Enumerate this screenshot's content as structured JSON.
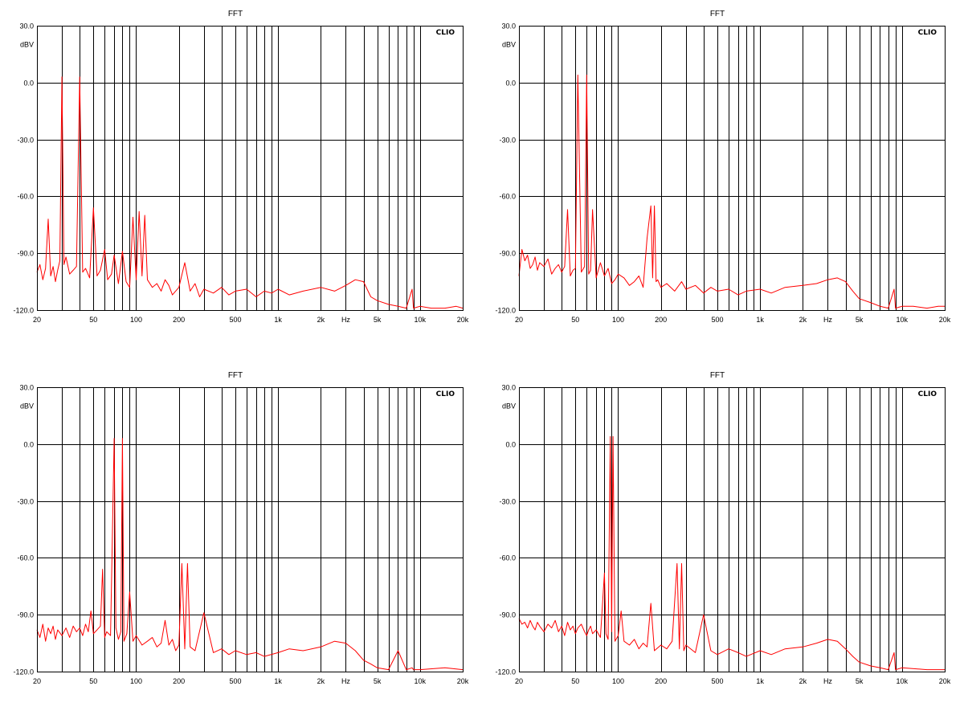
{
  "chart_data": [
    {
      "type": "line",
      "title": "FFT",
      "brand": "CLIO",
      "ylabel": "dBV",
      "xlabel_unit": "Hz",
      "x_scale": "log",
      "xlim": [
        20,
        20000
      ],
      "ylim": [
        -120,
        30
      ],
      "yticks": [
        "30.0",
        "0.0",
        "-30.0",
        "-60.0",
        "-90.0",
        "-120.0"
      ],
      "xticks": [
        "20",
        "50",
        "100",
        "200",
        "500",
        "1k",
        "2k",
        "Hz",
        "5k",
        "10k",
        "20k"
      ],
      "grid": true,
      "color": "#ff0000",
      "series": [
        {
          "x": [
            20,
            21,
            22,
            23,
            24,
            25,
            26,
            27,
            28,
            29,
            30,
            31,
            32,
            34,
            36,
            38,
            40,
            42,
            44,
            47,
            50,
            53,
            56,
            60,
            63,
            67,
            70,
            75,
            80,
            85,
            90,
            95,
            100,
            105,
            110,
            115,
            120,
            130,
            140,
            150,
            160,
            170,
            180,
            200,
            220,
            240,
            260,
            280,
            300,
            350,
            400,
            450,
            500,
            600,
            700,
            800,
            900,
            1000,
            1200,
            1500,
            2000,
            2500,
            3000,
            3500,
            4000,
            4500,
            5000,
            6000,
            7000,
            8000,
            8800,
            9000,
            10000,
            12000,
            15000,
            18000,
            20000
          ],
          "y": [
            -100,
            -96,
            -104,
            -98,
            -72,
            -102,
            -97,
            -105,
            -99,
            -94,
            3,
            -96,
            -92,
            -101,
            -99,
            -97,
            3,
            -100,
            -98,
            -103,
            -66,
            -102,
            -99,
            -88,
            -104,
            -101,
            -91,
            -106,
            -89,
            -105,
            -108,
            -71,
            -104,
            -68,
            -102,
            -70,
            -104,
            -108,
            -106,
            -110,
            -104,
            -107,
            -112,
            -108,
            -95,
            -110,
            -106,
            -113,
            -109,
            -111,
            -108,
            -112,
            -110,
            -109,
            -113,
            -110,
            -111,
            -109,
            -112,
            -110,
            -108,
            -110,
            -107,
            -104,
            -105,
            -113,
            -115,
            -117,
            -118,
            -119,
            -109,
            -119,
            -118,
            -119,
            -119,
            -118,
            -119
          ]
        }
      ]
    },
    {
      "type": "line",
      "title": "FFT",
      "brand": "CLIO",
      "ylabel": "dBV",
      "xlabel_unit": "Hz",
      "x_scale": "log",
      "xlim": [
        20,
        20000
      ],
      "ylim": [
        -120,
        30
      ],
      "yticks": [
        "30.0",
        "0.0",
        "-30.0",
        "-60.0",
        "-90.0",
        "-120.0"
      ],
      "xticks": [
        "20",
        "50",
        "100",
        "200",
        "500",
        "1k",
        "2k",
        "Hz",
        "5k",
        "10k",
        "20k"
      ],
      "grid": true,
      "color": "#ff0000",
      "series": [
        {
          "x": [
            20,
            21,
            22,
            23,
            24,
            25,
            26,
            27,
            28,
            30,
            32,
            34,
            36,
            38,
            40,
            42,
            44,
            46,
            48,
            50,
            52,
            55,
            58,
            60,
            62,
            64,
            66,
            70,
            75,
            80,
            85,
            90,
            95,
            100,
            110,
            120,
            130,
            140,
            150,
            160,
            170,
            175,
            180,
            185,
            190,
            200,
            220,
            250,
            280,
            300,
            350,
            400,
            450,
            500,
            600,
            700,
            800,
            1000,
            1200,
            1500,
            2000,
            2500,
            3000,
            3500,
            4000,
            4500,
            5000,
            6000,
            7000,
            8000,
            8800,
            9000,
            10000,
            12000,
            15000,
            18000,
            20000
          ],
          "y": [
            -102,
            -88,
            -94,
            -91,
            -98,
            -96,
            -92,
            -99,
            -95,
            -97,
            -93,
            -101,
            -98,
            -96,
            -100,
            -97,
            -67,
            -102,
            -99,
            -98,
            4,
            -100,
            -97,
            4,
            -101,
            -99,
            -67,
            -103,
            -95,
            -102,
            -98,
            -106,
            -104,
            -101,
            -103,
            -107,
            -105,
            -102,
            -108,
            -82,
            -65,
            -103,
            -65,
            -105,
            -104,
            -108,
            -106,
            -110,
            -105,
            -109,
            -107,
            -111,
            -108,
            -110,
            -109,
            -112,
            -110,
            -109,
            -111,
            -108,
            -107,
            -106,
            -104,
            -103,
            -105,
            -110,
            -114,
            -116,
            -118,
            -119,
            -109,
            -119,
            -118,
            -118,
            -119,
            -118,
            -118
          ]
        }
      ]
    },
    {
      "type": "line",
      "title": "FFT",
      "brand": "CLIO",
      "ylabel": "dBV",
      "xlabel_unit": "Hz",
      "x_scale": "log",
      "xlim": [
        20,
        20000
      ],
      "ylim": [
        -120,
        30
      ],
      "yticks": [
        "30.0",
        "0.0",
        "-30.0",
        "-60.0",
        "-90.0",
        "-120.0"
      ],
      "xticks": [
        "20",
        "50",
        "100",
        "200",
        "500",
        "1k",
        "2k",
        "Hz",
        "5k",
        "10k",
        "20k"
      ],
      "grid": true,
      "color": "#ff0000",
      "series": [
        {
          "x": [
            20,
            21,
            22,
            23,
            24,
            25,
            26,
            27,
            28,
            30,
            32,
            34,
            36,
            38,
            40,
            42,
            44,
            46,
            48,
            50,
            53,
            56,
            58,
            60,
            62,
            66,
            70,
            72,
            75,
            78,
            80,
            82,
            86,
            90,
            95,
            100,
            110,
            120,
            130,
            140,
            150,
            160,
            170,
            180,
            190,
            200,
            210,
            220,
            230,
            240,
            260,
            300,
            350,
            400,
            450,
            500,
            600,
            700,
            800,
            1000,
            1200,
            1500,
            2000,
            2500,
            3000,
            3500,
            4000,
            4500,
            5000,
            6000,
            7000,
            8000,
            8800,
            9000,
            10000,
            15000,
            20000
          ],
          "y": [
            -98,
            -102,
            -95,
            -104,
            -97,
            -100,
            -96,
            -103,
            -98,
            -101,
            -97,
            -102,
            -96,
            -99,
            -97,
            -101,
            -95,
            -99,
            -88,
            -100,
            -98,
            -96,
            -66,
            -102,
            -99,
            -101,
            3,
            -97,
            -103,
            -99,
            3,
            -104,
            -100,
            -78,
            -104,
            -101,
            -106,
            -104,
            -102,
            -107,
            -105,
            -93,
            -106,
            -103,
            -109,
            -106,
            -63,
            -108,
            -63,
            -107,
            -109,
            -89,
            -110,
            -108,
            -111,
            -109,
            -111,
            -110,
            -112,
            -110,
            -108,
            -109,
            -107,
            -104,
            -105,
            -109,
            -114,
            -116,
            -118,
            -119,
            -109,
            -119,
            -118,
            -119,
            -119,
            -118,
            -119
          ]
        }
      ]
    },
    {
      "type": "line",
      "title": "FFT",
      "brand": "CLIO",
      "ylabel": "dBV",
      "xlabel_unit": "Hz",
      "x_scale": "log",
      "xlim": [
        20,
        20000
      ],
      "ylim": [
        -120,
        30
      ],
      "yticks": [
        "30.0",
        "0.0",
        "-30.0",
        "-60.0",
        "-90.0",
        "-120.0"
      ],
      "xticks": [
        "20",
        "50",
        "100",
        "200",
        "500",
        "1k",
        "2k",
        "Hz",
        "5k",
        "10k",
        "20k"
      ],
      "grid": true,
      "color": "#ff0000",
      "series": [
        {
          "x": [
            20,
            21,
            22,
            23,
            24,
            25,
            26,
            27,
            28,
            30,
            32,
            34,
            36,
            38,
            40,
            42,
            44,
            46,
            48,
            50,
            52,
            55,
            58,
            60,
            62,
            64,
            66,
            70,
            75,
            80,
            82,
            85,
            88,
            90,
            92,
            95,
            100,
            105,
            110,
            120,
            130,
            140,
            150,
            160,
            170,
            180,
            200,
            220,
            240,
            260,
            270,
            280,
            290,
            300,
            350,
            400,
            450,
            500,
            600,
            700,
            800,
            1000,
            1200,
            1500,
            2000,
            2500,
            3000,
            3500,
            4000,
            4500,
            5000,
            6000,
            7000,
            8000,
            8800,
            9000,
            10000,
            15000,
            20000
          ],
          "y": [
            -92,
            -95,
            -94,
            -97,
            -93,
            -96,
            -98,
            -94,
            -96,
            -99,
            -95,
            -97,
            -93,
            -99,
            -96,
            -101,
            -94,
            -98,
            -96,
            -100,
            -97,
            -95,
            -99,
            -101,
            -98,
            -96,
            -100,
            -98,
            -102,
            -68,
            -100,
            -103,
            4,
            -99,
            4,
            -104,
            -101,
            -88,
            -104,
            -106,
            -103,
            -108,
            -105,
            -107,
            -84,
            -109,
            -106,
            -108,
            -104,
            -63,
            -108,
            -63,
            -109,
            -106,
            -110,
            -90,
            -109,
            -111,
            -108,
            -110,
            -112,
            -109,
            -111,
            -108,
            -107,
            -105,
            -103,
            -104,
            -108,
            -112,
            -115,
            -117,
            -118,
            -119,
            -110,
            -119,
            -118,
            -119,
            -119
          ]
        }
      ]
    }
  ]
}
